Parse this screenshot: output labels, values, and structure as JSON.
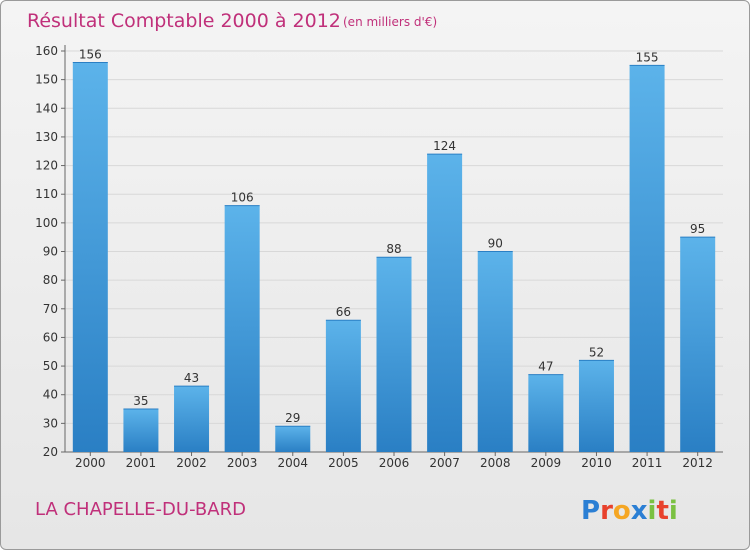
{
  "header": {
    "title": "Résultat Comptable 2000 à 2012",
    "unit": "(en milliers d'€)"
  },
  "footer": {
    "commune": "LA CHAPELLE-DU-BARD",
    "logo": {
      "letters": [
        "P",
        "r",
        "o",
        "x",
        "i",
        "t",
        "i"
      ],
      "colors": [
        "#2b7fd4",
        "#e8412c",
        "#f5a623",
        "#2b7fd4",
        "#7bc142",
        "#e8412c",
        "#7bc142"
      ]
    }
  },
  "colors": {
    "bar": "#3a97dc",
    "bar_light": "#5cb3ea",
    "title": "#c0307a"
  },
  "chart_data": {
    "type": "bar",
    "title": "Résultat Comptable 2000 à 2012",
    "subtitle": "(en milliers d'€)",
    "categories": [
      "2000",
      "2001",
      "2002",
      "2003",
      "2004",
      "2005",
      "2006",
      "2007",
      "2008",
      "2009",
      "2010",
      "2011",
      "2012"
    ],
    "values": [
      156,
      35,
      43,
      106,
      29,
      66,
      88,
      124,
      90,
      47,
      52,
      155,
      95
    ],
    "ylim": [
      20,
      160
    ],
    "yticks": [
      20,
      30,
      40,
      50,
      60,
      70,
      80,
      90,
      100,
      110,
      120,
      130,
      140,
      150,
      160
    ],
    "grid": true,
    "xlabel": "",
    "ylabel": ""
  }
}
